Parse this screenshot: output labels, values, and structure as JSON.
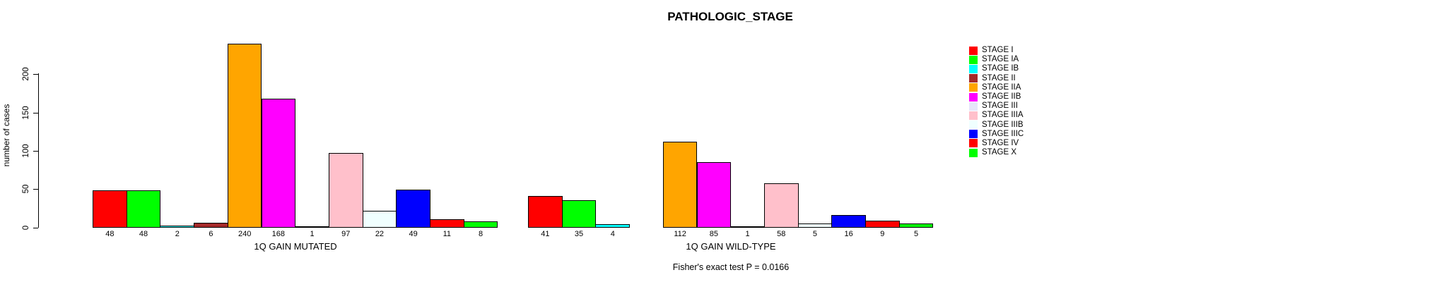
{
  "title": "PATHOLOGIC_STAGE",
  "chart_data": {
    "type": "bar",
    "title": "PATHOLOGIC_STAGE",
    "ylabel": "number of cases",
    "xlabel": "",
    "ylim": [
      0,
      240
    ],
    "yticks": [
      0,
      50,
      100,
      150,
      200
    ],
    "grid": false,
    "legend_position": "right",
    "categories": [
      "STAGE I",
      "STAGE IA",
      "STAGE IB",
      "STAGE II",
      "STAGE IIA",
      "STAGE IIB",
      "STAGE III",
      "STAGE IIIA",
      "STAGE IIIB",
      "STAGE IIIC",
      "STAGE IV",
      "STAGE X"
    ],
    "colors": [
      "#FF0000",
      "#00FF00",
      "#00FFFF",
      "#A52A2A",
      "#FFA500",
      "#FF00FF",
      "#E6E6FA",
      "#FFC0CB",
      "#F0FFFF",
      "#0000FF",
      "#FF0000",
      "#00FF00"
    ],
    "bar_border_color": "#000000",
    "background_color": "#FFFFFF",
    "groups": [
      {
        "label": "1Q GAIN MUTATED",
        "values": [
          48,
          48,
          2,
          6,
          240,
          168,
          1,
          97,
          22,
          49,
          11,
          8
        ]
      },
      {
        "label": "1Q GAIN WILD-TYPE",
        "values": [
          41,
          35,
          4,
          null,
          112,
          85,
          1,
          58,
          5,
          16,
          9,
          5
        ]
      }
    ],
    "annotation": "Fisher's exact test P = 0.0166"
  },
  "legend": {
    "items": [
      {
        "label": "STAGE I",
        "color": "#FF0000"
      },
      {
        "label": "STAGE IA",
        "color": "#00FF00"
      },
      {
        "label": "STAGE IB",
        "color": "#00FFFF"
      },
      {
        "label": "STAGE II",
        "color": "#A52A2A"
      },
      {
        "label": "STAGE IIA",
        "color": "#FFA500"
      },
      {
        "label": "STAGE IIB",
        "color": "#FF00FF"
      },
      {
        "label": "STAGE III",
        "color": "#E6E6FA"
      },
      {
        "label": "STAGE IIIA",
        "color": "#FFC0CB"
      },
      {
        "label": "STAGE IIIB",
        "color": "#F0FFFF"
      },
      {
        "label": "STAGE IIIC",
        "color": "#0000FF"
      },
      {
        "label": "STAGE IV",
        "color": "#FF0000"
      },
      {
        "label": "STAGE X",
        "color": "#00FF00"
      }
    ]
  }
}
